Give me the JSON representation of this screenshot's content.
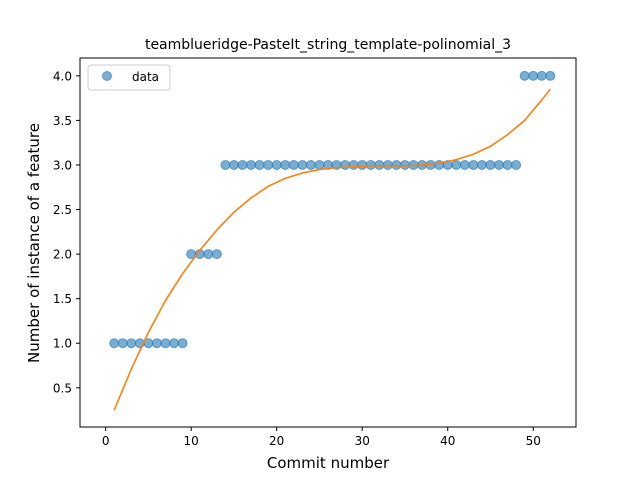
{
  "chart_data": {
    "type": "scatter",
    "title": "teamblueridge-PasteIt_string_template-polinomial_3",
    "xlabel": "Commit number",
    "ylabel": "Number of instance of a feature",
    "xlim": [
      -3.0,
      55.0
    ],
    "ylim": [
      0.06,
      4.2
    ],
    "xticks": [
      0,
      10,
      20,
      30,
      40,
      50
    ],
    "yticks": [
      0.5,
      1.0,
      1.5,
      2.0,
      2.5,
      3.0,
      3.5,
      4.0
    ],
    "xtick_labels": [
      "0",
      "10",
      "20",
      "30",
      "40",
      "50"
    ],
    "ytick_labels": [
      "0.5",
      "1.0",
      "1.5",
      "2.0",
      "2.5",
      "3.0",
      "3.5",
      "4.0"
    ],
    "legend": {
      "placement": "top-left",
      "entries": [
        "data"
      ]
    },
    "series": [
      {
        "name": "data",
        "kind": "scatter",
        "color": "#1f77b4",
        "x": [
          1,
          2,
          3,
          4,
          5,
          6,
          7,
          8,
          9,
          10,
          11,
          12,
          13,
          14,
          15,
          16,
          17,
          18,
          19,
          20,
          21,
          22,
          23,
          24,
          25,
          26,
          27,
          28,
          29,
          30,
          31,
          32,
          33,
          34,
          35,
          36,
          37,
          38,
          39,
          40,
          41,
          42,
          43,
          44,
          45,
          46,
          47,
          48,
          49,
          50,
          51,
          52
        ],
        "y": [
          1,
          1,
          1,
          1,
          1,
          1,
          1,
          1,
          1,
          2,
          2,
          2,
          2,
          3,
          3,
          3,
          3,
          3,
          3,
          3,
          3,
          3,
          3,
          3,
          3,
          3,
          3,
          3,
          3,
          3,
          3,
          3,
          3,
          3,
          3,
          3,
          3,
          3,
          3,
          3,
          3,
          3,
          3,
          3,
          3,
          3,
          3,
          3,
          4,
          4,
          4,
          4
        ]
      },
      {
        "kind": "line",
        "color": "#ff7f0e",
        "x": [
          1,
          3,
          5,
          7,
          9,
          11,
          13,
          15,
          17,
          19,
          21,
          23,
          25,
          27,
          29,
          31,
          33,
          35,
          37,
          39,
          41,
          43,
          45,
          47,
          49,
          51,
          52
        ],
        "y": [
          0.25,
          0.71,
          1.12,
          1.48,
          1.78,
          2.04,
          2.27,
          2.47,
          2.63,
          2.76,
          2.85,
          2.91,
          2.95,
          2.97,
          2.98,
          2.99,
          2.99,
          2.99,
          3.0,
          3.02,
          3.06,
          3.12,
          3.21,
          3.34,
          3.5,
          3.73,
          3.85
        ]
      }
    ]
  }
}
